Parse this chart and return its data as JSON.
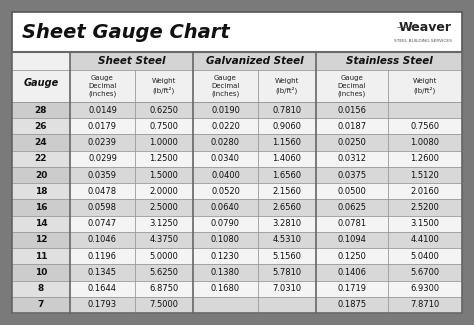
{
  "title": "Sheet Gauge Chart",
  "bg_outer": "#7a7a7a",
  "bg_inner": "#ffffff",
  "header_section_bg": "#d4d4d4",
  "subheader_bg": "#f0f0f0",
  "row_bg_dark": "#d8d8d8",
  "row_bg_light": "#f4f4f4",
  "gauge_header_bg": "#f0f0f0",
  "gauge_col": [
    28,
    26,
    24,
    22,
    20,
    18,
    16,
    14,
    12,
    11,
    10,
    8,
    7
  ],
  "sheet_steel_decimal": [
    "0.0149",
    "0.0179",
    "0.0239",
    "0.0299",
    "0.0359",
    "0.0478",
    "0.0598",
    "0.0747",
    "0.1046",
    "0.1196",
    "0.1345",
    "0.1644",
    "0.1793"
  ],
  "sheet_steel_weight": [
    "0.6250",
    "0.7500",
    "1.0000",
    "1.2500",
    "1.5000",
    "2.0000",
    "2.5000",
    "3.1250",
    "4.3750",
    "5.0000",
    "5.6250",
    "6.8750",
    "7.5000"
  ],
  "galv_steel_decimal": [
    "0.0190",
    "0.0220",
    "0.0280",
    "0.0340",
    "0.0400",
    "0.0520",
    "0.0640",
    "0.0790",
    "0.1080",
    "0.1230",
    "0.1380",
    "0.1680",
    ""
  ],
  "galv_steel_weight": [
    "0.7810",
    "0.9060",
    "1.1560",
    "1.4060",
    "1.6560",
    "2.1560",
    "2.6560",
    "3.2810",
    "4.5310",
    "5.1560",
    "5.7810",
    "7.0310",
    ""
  ],
  "stainless_decimal": [
    "0.0156",
    "0.0187",
    "0.0250",
    "0.0312",
    "0.0375",
    "0.0500",
    "0.0625",
    "0.0781",
    "0.1094",
    "0.1250",
    "0.1406",
    "0.1719",
    "0.1875"
  ],
  "stainless_weight": [
    "",
    "0.7560",
    "1.0080",
    "1.2600",
    "1.5120",
    "2.0160",
    "2.5200",
    "3.1500",
    "4.4100",
    "5.0400",
    "5.6700",
    "6.9300",
    "7.8710"
  ],
  "figw": 4.74,
  "figh": 3.25,
  "dpi": 100
}
